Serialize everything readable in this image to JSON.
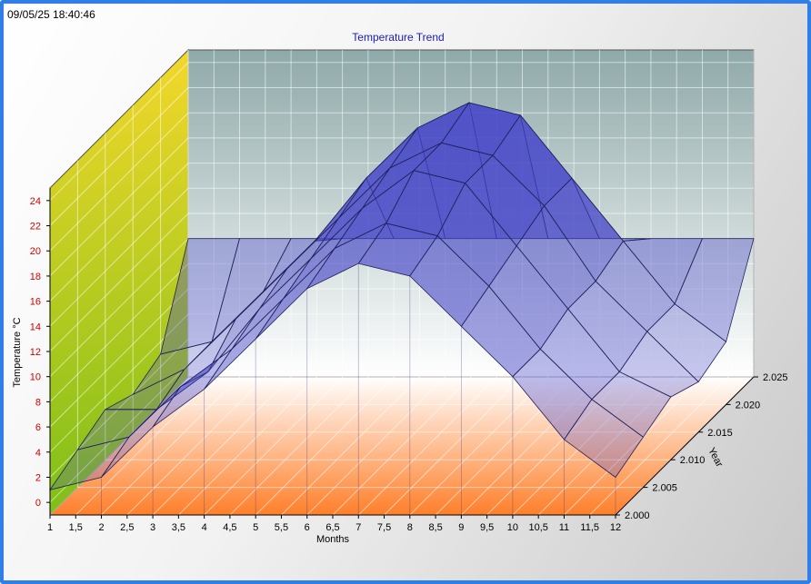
{
  "timestamp": "09/05/25 18:40:46",
  "chart_data": {
    "type": "surface3d",
    "title": "Temperature Trend",
    "xlabel": "Months",
    "ylabel": "Temperature °C",
    "zlabel": "Year",
    "x_ticks": [
      "1",
      "1,5",
      "2",
      "2,5",
      "3",
      "3,5",
      "4",
      "4,5",
      "5",
      "5,5",
      "6",
      "6,5",
      "7",
      "7,5",
      "8",
      "8,5",
      "9",
      "9,5",
      "10",
      "10,5",
      "11",
      "11,5",
      "12"
    ],
    "y_ticks": [
      "0",
      "2",
      "4",
      "6",
      "8",
      "10",
      "12",
      "14",
      "16",
      "18",
      "20",
      "22",
      "24"
    ],
    "z_ticks": [
      "2.000",
      "2.005",
      "2.010",
      "2.015",
      "2.020",
      "2.025"
    ],
    "xlim": [
      1,
      12
    ],
    "ylim": [
      -1,
      25
    ],
    "zlim": [
      2000,
      2025
    ],
    "months": [
      1,
      2,
      3,
      4,
      5,
      6,
      7,
      8,
      9,
      10,
      11,
      12
    ],
    "series": [
      {
        "name": "2000",
        "values": [
          1,
          2,
          6,
          9,
          13,
          17,
          19,
          18,
          14,
          10,
          5,
          2
        ]
      },
      {
        "name": "2005",
        "values": [
          2,
          3,
          7,
          10,
          14,
          18,
          20,
          19,
          15,
          10,
          6,
          3
        ]
      },
      {
        "name": "2010",
        "values": [
          3,
          3,
          6,
          11,
          15,
          19,
          22,
          21,
          16,
          11,
          6,
          4
        ]
      },
      {
        "name": "2015",
        "values": [
          2,
          4,
          8,
          12,
          16,
          20,
          22,
          21,
          17,
          11,
          7,
          3
        ]
      },
      {
        "name": "2020",
        "values": [
          3,
          4,
          8,
          12,
          17,
          21,
          23,
          22,
          17,
          12,
          7,
          4
        ]
      },
      {
        "name": "2025",
        "values": [
          10,
          10,
          10,
          10,
          10,
          10,
          10,
          10,
          10,
          10,
          10,
          10
        ]
      }
    ],
    "colors": {
      "surface": "#5a5ad0",
      "floor": "#ff8c3a",
      "left_wall_top": "#f2d52a",
      "left_wall_bottom": "#7fc018",
      "back_wall_top": "#8aa8a8",
      "back_wall_bottom": "#ffffff"
    },
    "grid": true
  }
}
